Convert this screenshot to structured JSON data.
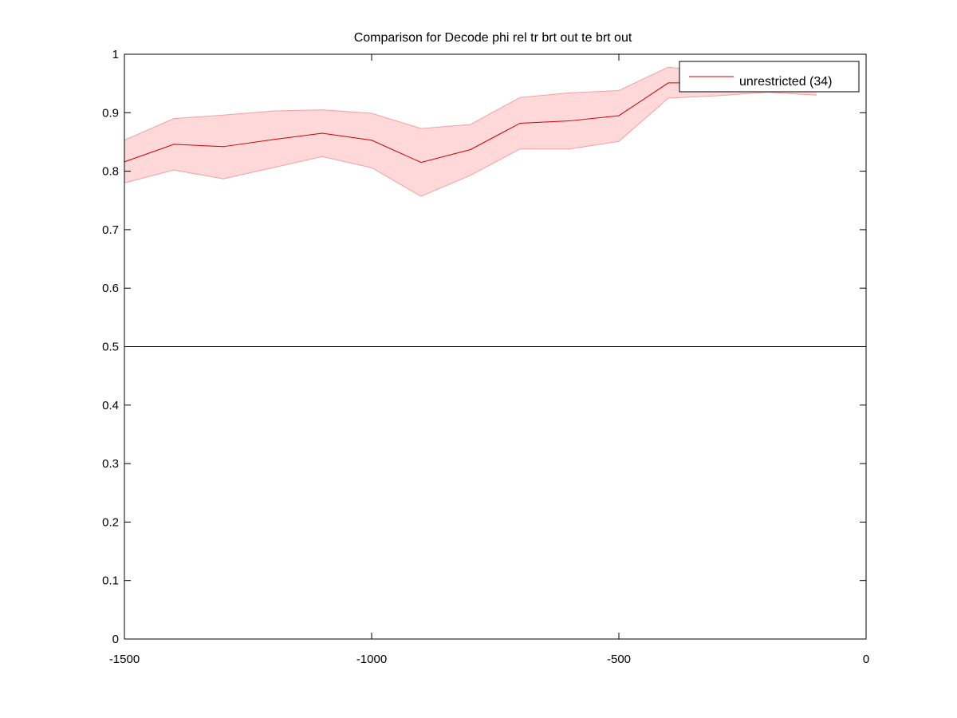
{
  "chart_data": {
    "type": "line",
    "title": "Comparison for Decode phi rel tr brt out te brt out",
    "xlabel": "",
    "ylabel": "",
    "xlim": [
      -1500,
      0
    ],
    "ylim": [
      0,
      1
    ],
    "xticks": [
      -1500,
      -1000,
      -500,
      0
    ],
    "xtick_labels": [
      "-1500",
      "-1000",
      "-500",
      "0"
    ],
    "yticks": [
      0,
      0.1,
      0.2,
      0.3,
      0.4,
      0.5,
      0.6,
      0.7,
      0.8,
      0.9,
      1
    ],
    "ytick_labels": [
      "0",
      "0.1",
      "0.2",
      "0.3",
      "0.4",
      "0.5",
      "0.6",
      "0.7",
      "0.8",
      "0.9",
      "1"
    ],
    "grid": false,
    "legend_position": "top-right",
    "reference_line": {
      "y": 0.5,
      "color": "#000000"
    },
    "series": [
      {
        "name": "unrestricted (34)",
        "color": "#cc0000",
        "band_color": "#ffd9d9",
        "band_edge_color": "#f4a0a0",
        "x": [
          -1500,
          -1400,
          -1300,
          -1200,
          -1100,
          -1000,
          -900,
          -800,
          -700,
          -600,
          -500,
          -400,
          -300,
          -200,
          -100
        ],
        "y": [
          0.816,
          0.846,
          0.842,
          0.854,
          0.865,
          0.853,
          0.815,
          0.837,
          0.882,
          0.886,
          0.895,
          0.951,
          0.951,
          0.95,
          0.945
        ],
        "upper": [
          0.853,
          0.89,
          0.896,
          0.903,
          0.905,
          0.899,
          0.873,
          0.88,
          0.926,
          0.934,
          0.938,
          0.978,
          0.968,
          0.962,
          0.958
        ],
        "lower": [
          0.78,
          0.802,
          0.787,
          0.806,
          0.825,
          0.806,
          0.757,
          0.793,
          0.838,
          0.838,
          0.851,
          0.925,
          0.929,
          0.935,
          0.93
        ]
      }
    ]
  }
}
